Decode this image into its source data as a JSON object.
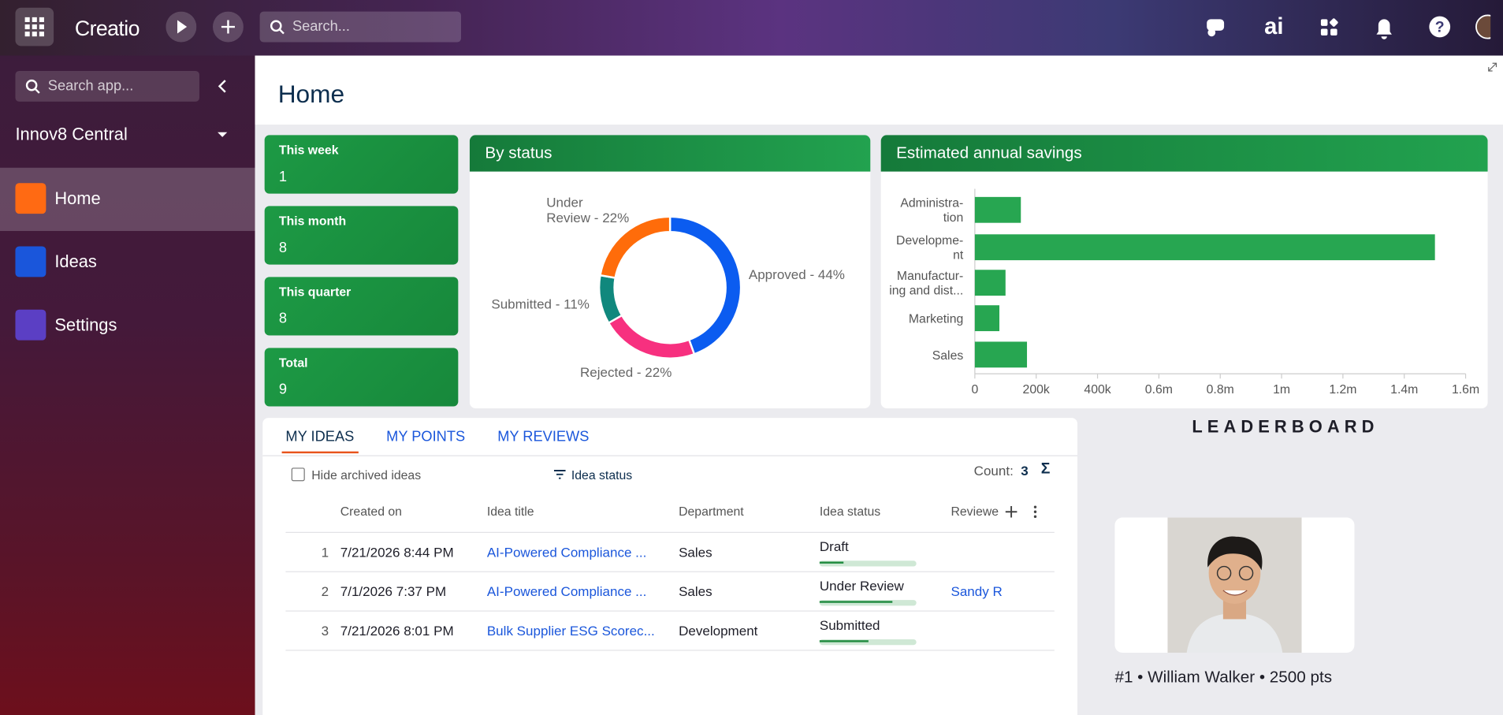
{
  "header": {
    "app_name": "Creatio",
    "search_placeholder": "Search..."
  },
  "sidebar": {
    "search_placeholder": "Search app...",
    "workspace": "Innov8 Central",
    "nav": [
      "Home",
      "Ideas",
      "Settings"
    ]
  },
  "page_title": "Home",
  "kpis": [
    {
      "label": "This week",
      "value": 1
    },
    {
      "label": "This month",
      "value": 8
    },
    {
      "label": "This quarter",
      "value": 8
    },
    {
      "label": "Total",
      "value": 9
    }
  ],
  "chart_data": [
    {
      "type": "pie",
      "donut": true,
      "title": "By status",
      "values": [
        44,
        22,
        11,
        22
      ],
      "value_labels": [
        "Approved - 44%",
        "Rejected - 22%",
        "Submitted - 11%",
        "Under\nReview - 22%"
      ],
      "colors": [
        "#0b5cf0",
        "#f7307f",
        "#10887d",
        "#ff6c0a"
      ]
    },
    {
      "type": "bar",
      "horizontal": true,
      "title": "Estimated annual savings",
      "categories": [
        "Administra-\ntion",
        "Developme-\nnt",
        "Manufactur-\ning and dist...",
        "Marketing",
        "Sales"
      ],
      "values": [
        150000,
        1500000,
        100000,
        80000,
        170000
      ],
      "color": "#27a651",
      "xlim": [
        0,
        1600000
      ],
      "xticks": [
        0,
        {
          "value": 200000,
          "label": "200k"
        },
        {
          "value": 400000,
          "label": "400k"
        },
        {
          "value": 600000,
          "label": "0.6m"
        },
        {
          "value": 800000,
          "label": "0.8m"
        },
        {
          "value": 1000000,
          "label": "1m"
        },
        {
          "value": 1200000,
          "label": "1.2m"
        },
        {
          "value": 1400000,
          "label": "1.4m"
        },
        {
          "value": 1600000,
          "label": "1.6m"
        }
      ]
    }
  ],
  "tabs": [
    "MY IDEAS",
    "MY POINTS",
    "MY REVIEWS"
  ],
  "table": {
    "hide_archived": "Hide archived ideas",
    "filter": "Idea status",
    "count_label": "Count:",
    "count": 3,
    "columns": [
      "Created on",
      "Idea title",
      "Department",
      "Idea status",
      "Reviewe"
    ],
    "rows": [
      {
        "number": 1,
        "created": "7/21/2026 8:44 PM",
        "title": "AI-Powered Compliance ...",
        "department": "Sales",
        "status": "Draft",
        "progress": 25
      },
      {
        "number": 2,
        "created": "7/1/2026 7:37 PM",
        "title": "AI-Powered Compliance ...",
        "department": "Sales",
        "status": "Under Review",
        "progress": 75,
        "reviewer": "Sandy R"
      },
      {
        "number": 3,
        "created": "7/21/2026 8:01 PM",
        "title": "Bulk Supplier ESG Scorec...",
        "department": "Development",
        "status": "Submitted",
        "progress": 50
      }
    ]
  },
  "leaderboard": {
    "title": "LEADERBOARD",
    "entry": "#1 • William Walker • 2500 pts"
  }
}
